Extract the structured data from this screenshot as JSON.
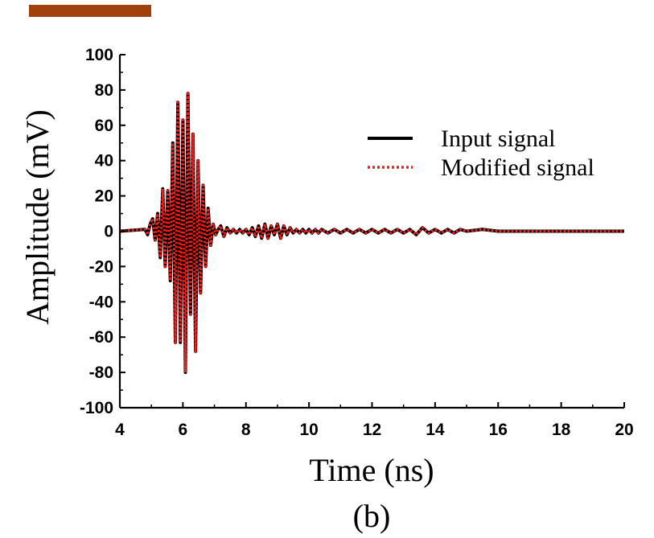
{
  "colors": {
    "input_series": "#000000",
    "modified_series": "#ff1a1a",
    "accent_bar": "#a0410d"
  },
  "panel_label": "(b)",
  "chart_data": {
    "type": "line",
    "title": "",
    "xlabel": "Time (ns)",
    "ylabel": "Amplitude (mV)",
    "xlim": [
      4,
      20
    ],
    "ylim": [
      -100,
      100
    ],
    "x_ticks": [
      4,
      6,
      8,
      10,
      12,
      14,
      16,
      18,
      20
    ],
    "y_ticks": [
      100,
      80,
      60,
      40,
      20,
      0,
      -20,
      -40,
      -60,
      -80,
      -100
    ],
    "grid": false,
    "legend_position": "top-right",
    "series": [
      {
        "name": "Input signal",
        "style": "solid",
        "color": "#000000",
        "x": [
          4.0,
          4.8,
          4.88,
          4.96,
          5.04,
          5.12,
          5.2,
          5.28,
          5.36,
          5.44,
          5.52,
          5.6,
          5.68,
          5.76,
          5.84,
          5.92,
          6.0,
          6.08,
          6.16,
          6.24,
          6.32,
          6.4,
          6.48,
          6.56,
          6.64,
          6.72,
          6.8,
          6.88,
          6.96,
          7.04,
          7.12,
          7.2,
          7.3,
          7.4,
          7.5,
          7.6,
          7.7,
          7.8,
          7.9,
          8.0,
          8.1,
          8.2,
          8.3,
          8.4,
          8.5,
          8.6,
          8.7,
          8.8,
          8.9,
          9.0,
          9.1,
          9.2,
          9.3,
          9.4,
          9.5,
          9.6,
          9.7,
          9.8,
          9.9,
          10.0,
          10.1,
          10.2,
          10.3,
          10.4,
          10.6,
          10.8,
          11.0,
          11.2,
          11.4,
          11.6,
          11.8,
          12.0,
          12.2,
          12.4,
          12.6,
          12.8,
          13.0,
          13.2,
          13.4,
          13.6,
          13.8,
          14.0,
          14.2,
          14.4,
          14.6,
          14.8,
          15.0,
          15.5,
          16.0,
          17.0,
          18.0,
          19.0,
          20.0
        ],
        "y": [
          0,
          1,
          -2,
          4,
          7,
          -5,
          10,
          -15,
          24,
          -20,
          23,
          -28,
          50,
          -63,
          73,
          -63,
          63,
          -80,
          78,
          -47,
          55,
          -68,
          40,
          -35,
          26,
          -20,
          13,
          -8,
          4,
          -2,
          1,
          3,
          -3,
          2,
          -1,
          1,
          -1,
          1,
          -1,
          1,
          -2,
          2,
          -3,
          3,
          -4,
          4,
          -4,
          3,
          -2,
          4,
          -4,
          3,
          -2,
          2,
          -1,
          1,
          -1,
          1,
          -1,
          1,
          -1,
          1,
          -1,
          1,
          -1,
          1,
          -1,
          1,
          -1,
          1,
          -1,
          1,
          -1,
          1,
          -1,
          1,
          -1,
          1,
          -2,
          2,
          -1,
          1,
          -1,
          1,
          -1,
          1,
          0,
          1,
          0,
          0,
          0,
          0,
          0
        ]
      },
      {
        "name": "Modified  signal",
        "style": "dotted",
        "color": "#ff1a1a",
        "x": [
          4.0,
          4.8,
          4.88,
          4.96,
          5.04,
          5.12,
          5.2,
          5.28,
          5.36,
          5.44,
          5.52,
          5.6,
          5.68,
          5.76,
          5.84,
          5.92,
          6.0,
          6.08,
          6.16,
          6.24,
          6.32,
          6.4,
          6.48,
          6.56,
          6.64,
          6.72,
          6.8,
          6.88,
          6.96,
          7.04,
          7.12,
          7.2,
          7.3,
          7.4,
          7.5,
          7.6,
          7.7,
          7.8,
          7.9,
          8.0,
          8.1,
          8.2,
          8.3,
          8.4,
          8.5,
          8.6,
          8.7,
          8.8,
          8.9,
          9.0,
          9.1,
          9.2,
          9.3,
          9.4,
          9.5,
          9.6,
          9.7,
          9.8,
          9.9,
          10.0,
          10.1,
          10.2,
          10.3,
          10.4,
          10.6,
          10.8,
          11.0,
          11.2,
          11.4,
          11.6,
          11.8,
          12.0,
          12.2,
          12.4,
          12.6,
          12.8,
          13.0,
          13.2,
          13.4,
          13.6,
          13.8,
          14.0,
          14.2,
          14.4,
          14.6,
          14.8,
          15.0,
          15.5,
          16.0,
          17.0,
          18.0,
          19.0,
          20.0
        ],
        "y": [
          0,
          1,
          -2,
          4,
          7,
          -5,
          10,
          -15,
          24,
          -20,
          23,
          -28,
          50,
          -63,
          73,
          -63,
          63,
          -80,
          78,
          -47,
          55,
          -68,
          40,
          -35,
          26,
          -20,
          13,
          -8,
          4,
          -2,
          1,
          3,
          -3,
          2,
          -1,
          1,
          -1,
          1,
          -1,
          1,
          -2,
          2,
          -3,
          3,
          -4,
          4,
          -4,
          3,
          -2,
          4,
          -4,
          3,
          -2,
          2,
          -1,
          1,
          -1,
          1,
          -1,
          1,
          -1,
          1,
          -1,
          1,
          -1,
          1,
          -1,
          1,
          -1,
          1,
          -1,
          1,
          -1,
          1,
          -1,
          1,
          -1,
          1,
          -2,
          2,
          -1,
          1,
          -1,
          1,
          -1,
          1,
          0,
          1,
          0,
          0,
          0,
          0,
          0
        ]
      }
    ]
  }
}
